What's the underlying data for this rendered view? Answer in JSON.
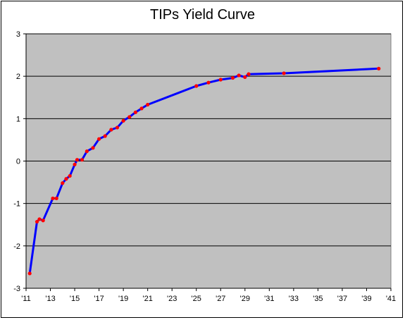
{
  "chart_data": {
    "type": "line",
    "title": "TIPs Yield Curve",
    "xlabel": "",
    "ylabel": "",
    "xlim": [
      2011,
      2041
    ],
    "ylim": [
      -3,
      3
    ],
    "grid": true,
    "legend": "none",
    "x_ticks": [
      "'11",
      "'13",
      "'15",
      "'17",
      "'19",
      "'21",
      "'23",
      "'25",
      "'27",
      "'29",
      "'31",
      "'33",
      "'35",
      "'37",
      "'39",
      "'41"
    ],
    "y_ticks": [
      "-3",
      "-2",
      "-1",
      "0",
      "1",
      "2",
      "3"
    ],
    "colors": {
      "plot_background": "#c0c0c0",
      "line": "#0000ff",
      "marker": "#ff0000",
      "grid": "#000000"
    },
    "series": [
      {
        "name": "",
        "x": [
          2011.3,
          2011.9,
          2012.1,
          2012.4,
          2013.2,
          2013.5,
          2014.0,
          2014.3,
          2014.6,
          2015.0,
          2015.2,
          2015.6,
          2016.0,
          2016.5,
          2017.0,
          2017.5,
          2018.0,
          2018.5,
          2019.0,
          2019.5,
          2020.0,
          2020.5,
          2021.0,
          2025.0,
          2026.0,
          2027.0,
          2028.0,
          2028.5,
          2029.0,
          2029.3,
          2032.2,
          2040.0
        ],
        "y": [
          -2.65,
          -1.43,
          -1.37,
          -1.4,
          -0.88,
          -0.88,
          -0.52,
          -0.42,
          -0.35,
          -0.08,
          0.03,
          0.03,
          0.23,
          0.31,
          0.52,
          0.59,
          0.74,
          0.79,
          0.95,
          1.04,
          1.15,
          1.24,
          1.33,
          1.77,
          1.85,
          1.92,
          1.96,
          2.02,
          1.98,
          2.05,
          2.07,
          2.18
        ]
      }
    ]
  }
}
